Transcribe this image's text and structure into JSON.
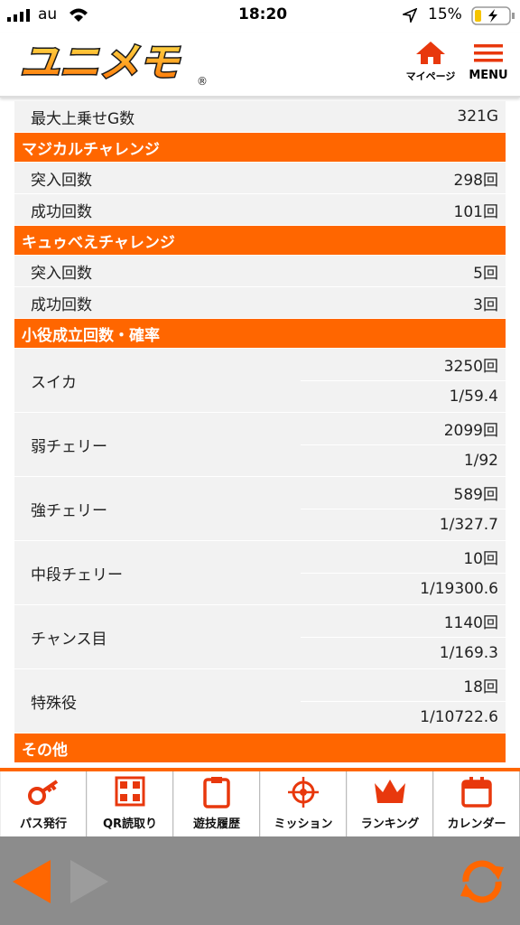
{
  "status_bar": {
    "carrier": "au",
    "time": "18:20",
    "battery": "15%"
  },
  "header": {
    "logo": "ユニメモ",
    "logo_mark": "®",
    "mypage": "マイページ",
    "menu": "MENU"
  },
  "top_rows": [
    {
      "label": "最大上乗せG数",
      "value": "321G"
    }
  ],
  "sections": [
    {
      "title": "マジカルチャレンジ",
      "rows": [
        {
          "label": "突入回数",
          "value": "298回"
        },
        {
          "label": "成功回数",
          "value": "101回"
        }
      ]
    },
    {
      "title": "キュゥべえチャレンジ",
      "rows": [
        {
          "label": "突入回数",
          "value": "5回"
        },
        {
          "label": "成功回数",
          "value": "3回"
        }
      ]
    },
    {
      "title": "小役成立回数・確率",
      "pair_rows": [
        {
          "label": "スイカ",
          "count": "3250回",
          "probability": "1/59.4"
        },
        {
          "label": "弱チェリー",
          "count": "2099回",
          "probability": "1/92"
        },
        {
          "label": "強チェリー",
          "count": "589回",
          "probability": "1/327.7"
        },
        {
          "label": "中段チェリー",
          "count": "10回",
          "probability": "1/19300.6"
        },
        {
          "label": "チャンス目",
          "count": "1140回",
          "probability": "1/169.3"
        },
        {
          "label": "特殊役",
          "count": "18回",
          "probability": "1/10722.6"
        }
      ]
    },
    {
      "title": "その他"
    }
  ],
  "bottom_nav": [
    "パス発行",
    "QR読取り",
    "遊技履歴",
    "ミッション",
    "ランキング",
    "カレンダー"
  ]
}
